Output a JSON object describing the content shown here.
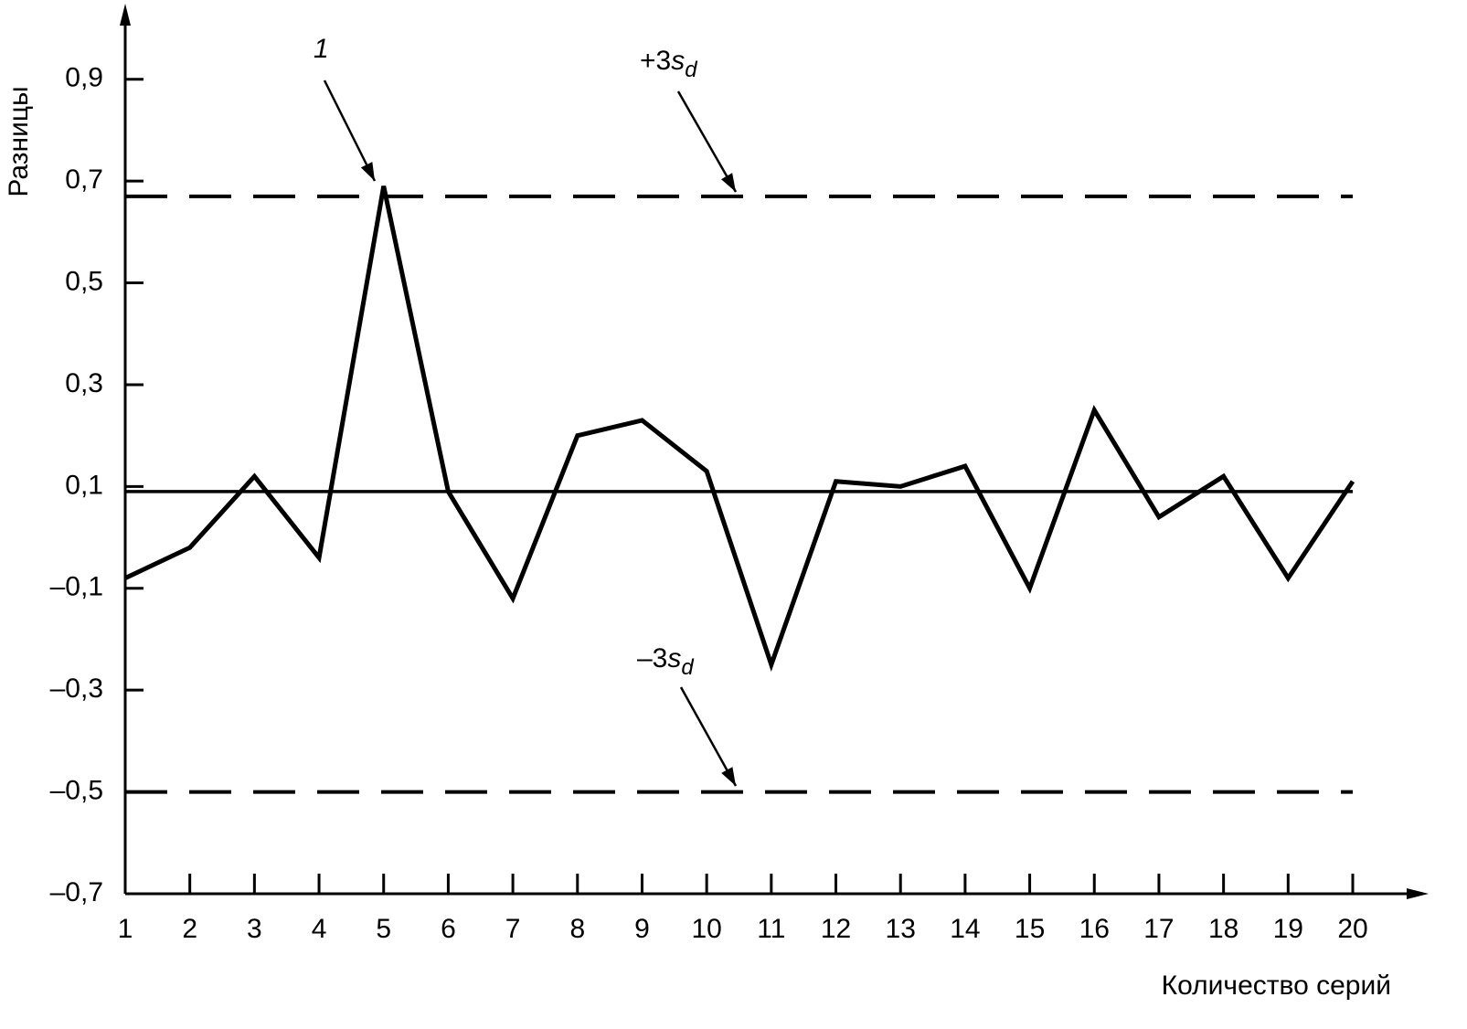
{
  "chart_data": {
    "type": "line",
    "x_label": "Количество серий",
    "y_label": "Разницы",
    "x": [
      1,
      2,
      3,
      4,
      5,
      6,
      7,
      8,
      9,
      10,
      11,
      12,
      13,
      14,
      15,
      16,
      17,
      18,
      19,
      20
    ],
    "series": [
      {
        "color": "#000000",
        "values": [
          -0.08,
          -0.02,
          0.12,
          -0.04,
          0.69,
          0.09,
          -0.12,
          0.2,
          0.23,
          0.13,
          -0.25,
          0.11,
          0.1,
          0.14,
          -0.1,
          0.25,
          0.04,
          0.12,
          -0.08,
          0.11
        ]
      }
    ],
    "xlim": [
      1,
      20
    ],
    "xticks": [
      1,
      2,
      3,
      4,
      5,
      6,
      7,
      8,
      9,
      10,
      11,
      12,
      13,
      14,
      15,
      16,
      17,
      18,
      19,
      20
    ],
    "ylim": [
      -0.7,
      1.0
    ],
    "yticks": [
      {
        "value": 0.9,
        "label": "0,9"
      },
      {
        "value": 0.7,
        "label": "0,7"
      },
      {
        "value": 0.5,
        "label": "0,5"
      },
      {
        "value": 0.3,
        "label": "0,3"
      },
      {
        "value": 0.1,
        "label": "0,1"
      },
      {
        "value": -0.1,
        "label": "–0,1"
      },
      {
        "value": -0.3,
        "label": "–0,3"
      },
      {
        "value": -0.5,
        "label": "–0,5"
      },
      {
        "value": -0.7,
        "label": "–0,7"
      }
    ],
    "reference_lines": [
      {
        "value": 0.67,
        "style": "dashed"
      },
      {
        "value": 0.09,
        "style": "solid"
      },
      {
        "value": -0.5,
        "style": "dashed"
      }
    ],
    "annotations": [
      {
        "text": "1"
      },
      {
        "text": "+3",
        "var": "s",
        "sub": "d"
      },
      {
        "text": "–3",
        "var": "s",
        "sub": "d"
      }
    ]
  }
}
